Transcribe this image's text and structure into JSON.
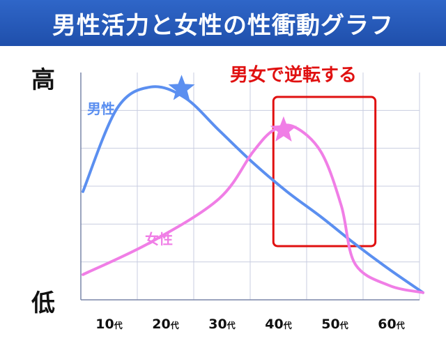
{
  "title": "男性活力と女性の性衝動グラフ",
  "chart_data": {
    "type": "line",
    "title": "男性活力と女性の性衝動グラフ",
    "categories": [
      "10代",
      "20代",
      "30代",
      "40代",
      "50代",
      "60代"
    ],
    "y_axis_labels": {
      "top": "高",
      "bottom": "低"
    },
    "grid": true,
    "series": [
      {
        "name": "男性",
        "color": "#5b8ff0",
        "points": [
          [
            0.0,
            3.0
          ],
          [
            0.5,
            5.3
          ],
          [
            1.0,
            5.9
          ],
          [
            1.5,
            5.6
          ],
          [
            2.0,
            4.7
          ],
          [
            2.5,
            3.8
          ],
          [
            3.0,
            3.0
          ],
          [
            3.5,
            2.3
          ],
          [
            4.0,
            1.55
          ],
          [
            4.5,
            0.85
          ],
          [
            5.0,
            0.2
          ]
        ],
        "peak_marker": {
          "x": 1.45,
          "y": 5.85
        }
      },
      {
        "name": "女性",
        "color": "#f07ee6",
        "points": [
          [
            0.0,
            0.7
          ],
          [
            1.0,
            1.6
          ],
          [
            2.0,
            2.8
          ],
          [
            2.5,
            4.1
          ],
          [
            2.8,
            4.7
          ],
          [
            3.1,
            4.8
          ],
          [
            3.5,
            4.1
          ],
          [
            3.8,
            2.6
          ],
          [
            4.0,
            1.0
          ],
          [
            4.5,
            0.4
          ],
          [
            5.0,
            0.2
          ]
        ],
        "peak_marker": {
          "x": 2.95,
          "y": 4.7
        }
      }
    ],
    "annotation": {
      "text": "男女で逆転する",
      "x_range": [
        2.8,
        4.3
      ],
      "color": "#e01010"
    }
  }
}
